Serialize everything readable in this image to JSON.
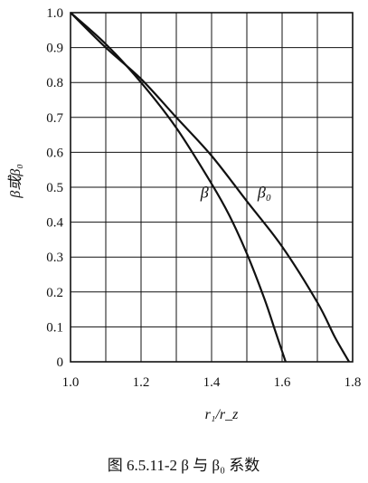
{
  "colors": {
    "line": "#111111",
    "grid": "#111111",
    "background": "#ffffff"
  },
  "caption": "图 6.5.11-2   β 与 β₀ 系数",
  "chart_data": {
    "type": "line",
    "title": "",
    "xlabel": "r₁/r_z",
    "ylabel": "β或β₀",
    "xlim": [
      1.0,
      1.8
    ],
    "ylim": [
      0,
      1.0
    ],
    "grid": true,
    "legend": "none",
    "x_ticks": [
      "1.0",
      "1.2",
      "1.4",
      "1.6",
      "1.8"
    ],
    "y_ticks": [
      "0",
      "0.1",
      "0.2",
      "0.3",
      "0.4",
      "0.5",
      "0.6",
      "0.7",
      "0.8",
      "0.9",
      "1.0"
    ],
    "series": [
      {
        "name": "β",
        "label_at": [
          1.38,
          0.47
        ],
        "x": [
          1.0,
          1.1,
          1.2,
          1.3,
          1.4,
          1.45,
          1.5,
          1.55,
          1.58,
          1.6,
          1.61
        ],
        "y": [
          1.0,
          0.91,
          0.8,
          0.67,
          0.51,
          0.42,
          0.31,
          0.18,
          0.09,
          0.03,
          0.0
        ]
      },
      {
        "name": "β₀",
        "label_at": [
          1.55,
          0.47
        ],
        "x": [
          1.0,
          1.1,
          1.2,
          1.3,
          1.4,
          1.5,
          1.6,
          1.7,
          1.75,
          1.79
        ],
        "y": [
          1.0,
          0.9,
          0.81,
          0.7,
          0.59,
          0.46,
          0.33,
          0.17,
          0.07,
          0.0
        ]
      }
    ]
  }
}
